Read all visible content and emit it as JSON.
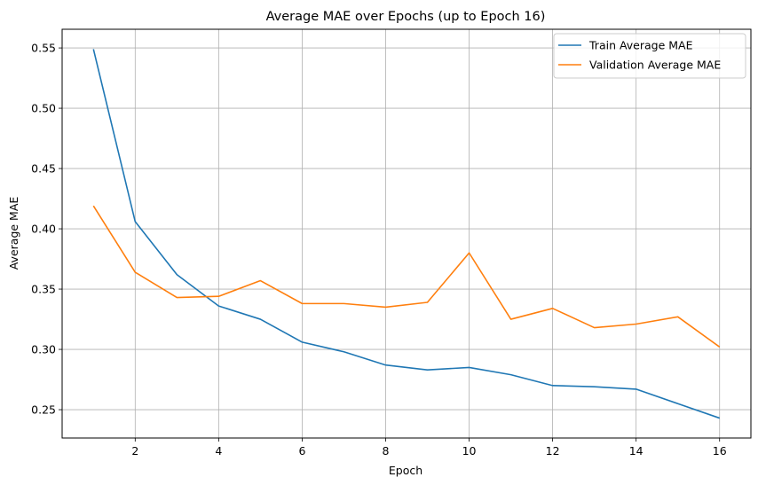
{
  "chart_data": {
    "type": "line",
    "title": "Average MAE over Epochs (up to Epoch 16)",
    "xlabel": "Epoch",
    "ylabel": "Average MAE",
    "xlim": [
      0.25,
      16.75
    ],
    "ylim": [
      0.2265,
      0.5655
    ],
    "x_ticks": [
      2,
      4,
      6,
      8,
      10,
      12,
      14,
      16
    ],
    "y_ticks": [
      0.25,
      0.3,
      0.35,
      0.4,
      0.45,
      0.5,
      0.55
    ],
    "y_tick_labels": [
      "0.25",
      "0.30",
      "0.35",
      "0.40",
      "0.45",
      "0.50",
      "0.55"
    ],
    "grid": true,
    "legend_position": "top-right",
    "x": [
      1,
      2,
      3,
      4,
      5,
      6,
      7,
      8,
      9,
      10,
      11,
      12,
      13,
      14,
      15,
      16
    ],
    "series": [
      {
        "name": "Train Average MAE",
        "color": "#1f77b4",
        "values": [
          0.549,
          0.406,
          0.362,
          0.336,
          0.325,
          0.306,
          0.298,
          0.287,
          0.283,
          0.285,
          0.279,
          0.27,
          0.269,
          0.267,
          0.255,
          0.243
        ]
      },
      {
        "name": "Validation Average MAE",
        "color": "#ff7f0e",
        "values": [
          0.419,
          0.364,
          0.343,
          0.344,
          0.357,
          0.338,
          0.338,
          0.335,
          0.339,
          0.38,
          0.325,
          0.334,
          0.318,
          0.321,
          0.327,
          0.302
        ]
      }
    ]
  }
}
